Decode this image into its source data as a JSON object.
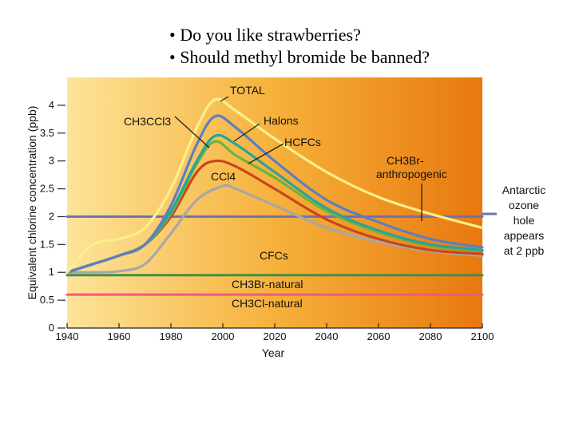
{
  "slide": {
    "bullets": [
      "Do you like strawberries?",
      "Should methyl bromide be banned?"
    ]
  },
  "chart_data": {
    "type": "line",
    "xlabel": "Year",
    "ylabel": "Equivalent chlorine concentration (ppb)",
    "xlim": [
      1940,
      2100
    ],
    "ylim": [
      0,
      4.5
    ],
    "xticks": [
      1940,
      1960,
      1980,
      2000,
      2020,
      2040,
      2060,
      2080,
      2100
    ],
    "yticks": [
      0,
      0.5,
      1,
      1.5,
      2,
      2.5,
      3,
      3.5,
      4
    ],
    "ytick_labels": [
      "0",
      "0.5",
      "1",
      "1.5",
      "2",
      "2.5",
      "3",
      "3.5",
      "4"
    ],
    "series": [
      {
        "name": "TOTAL",
        "color": "#fbf08a",
        "x": [
          1940,
          1950,
          1960,
          1970,
          1980,
          1990,
          1997,
          2005,
          2020,
          2040,
          2060,
          2080,
          2100
        ],
        "y": [
          1.0,
          1.5,
          1.6,
          1.8,
          2.5,
          3.6,
          4.1,
          3.9,
          3.4,
          2.8,
          2.35,
          2.05,
          1.8
        ]
      },
      {
        "name": "Halons",
        "color": "#5c7fc1",
        "x": [
          1940,
          1950,
          1960,
          1970,
          1980,
          1990,
          1997,
          2005,
          2020,
          2040,
          2060,
          2080,
          2100
        ],
        "y": [
          1.0,
          1.15,
          1.3,
          1.5,
          2.2,
          3.3,
          3.8,
          3.6,
          3.0,
          2.3,
          1.9,
          1.6,
          1.45
        ]
      },
      {
        "name": "HCFCs",
        "color": "#2aa39b",
        "x": [
          1940,
          1950,
          1960,
          1970,
          1980,
          1990,
          1997,
          2005,
          2020,
          2040,
          2060,
          2080,
          2100
        ],
        "y": [
          1.0,
          1.15,
          1.3,
          1.5,
          2.1,
          3.0,
          3.45,
          3.3,
          2.8,
          2.15,
          1.75,
          1.5,
          1.4
        ]
      },
      {
        "name": "CH3CCl3",
        "color": "#6cb33f",
        "x": [
          1940,
          1950,
          1960,
          1970,
          1980,
          1990,
          1997,
          2005,
          2020,
          2040,
          2060,
          2080,
          2100
        ],
        "y": [
          1.0,
          1.15,
          1.3,
          1.5,
          2.05,
          2.95,
          3.35,
          3.1,
          2.7,
          2.1,
          1.72,
          1.48,
          1.38
        ]
      },
      {
        "name": "CCl4",
        "color": "#c9461d",
        "x": [
          1940,
          1950,
          1960,
          1970,
          1980,
          1990,
          1997,
          2005,
          2020,
          2040,
          2060,
          2080,
          2100
        ],
        "y": [
          1.0,
          1.15,
          1.3,
          1.5,
          2.0,
          2.8,
          3.0,
          2.9,
          2.5,
          1.95,
          1.6,
          1.4,
          1.33
        ]
      },
      {
        "name": "CFCs",
        "color": "#a7a7a7",
        "x": [
          1940,
          1950,
          1960,
          1970,
          1980,
          1990,
          2000,
          2005,
          2020,
          2040,
          2060,
          2080,
          2100
        ],
        "y": [
          1.0,
          1.0,
          1.02,
          1.15,
          1.7,
          2.3,
          2.55,
          2.5,
          2.2,
          1.8,
          1.55,
          1.38,
          1.3
        ]
      },
      {
        "name": "Antarctic ozone hole threshold",
        "color": "#6f6fb8",
        "x": [
          1940,
          2100
        ],
        "y": [
          2.0,
          2.0
        ]
      },
      {
        "name": "CH3Br-natural",
        "color": "#3f8f4a",
        "x": [
          1940,
          2100
        ],
        "y": [
          0.95,
          0.95
        ]
      },
      {
        "name": "CH3Cl-natural",
        "color": "#ef5a7a",
        "x": [
          1940,
          2100
        ],
        "y": [
          0.6,
          0.6
        ]
      }
    ],
    "annotations": {
      "total": "TOTAL",
      "ch3ccl3": "CH3CCl3",
      "halons": "Halons",
      "hcfcs": "HCFCs",
      "ccl4": "CCl4",
      "ch3br_anthro_1": "CH3Br-",
      "ch3br_anthro_2": "anthropogenic",
      "cfcs": "CFCs",
      "ch3br_natural": "CH3Br-natural",
      "ch3cl_natural": "CH3Cl-natural",
      "ozone_1": "Antarctic",
      "ozone_2": "ozone",
      "ozone_3": "hole",
      "ozone_4": "appears",
      "ozone_5": "at 2 ppb"
    },
    "background_gradient": [
      "#fde49a",
      "#f6b13b",
      "#e8780e"
    ]
  }
}
